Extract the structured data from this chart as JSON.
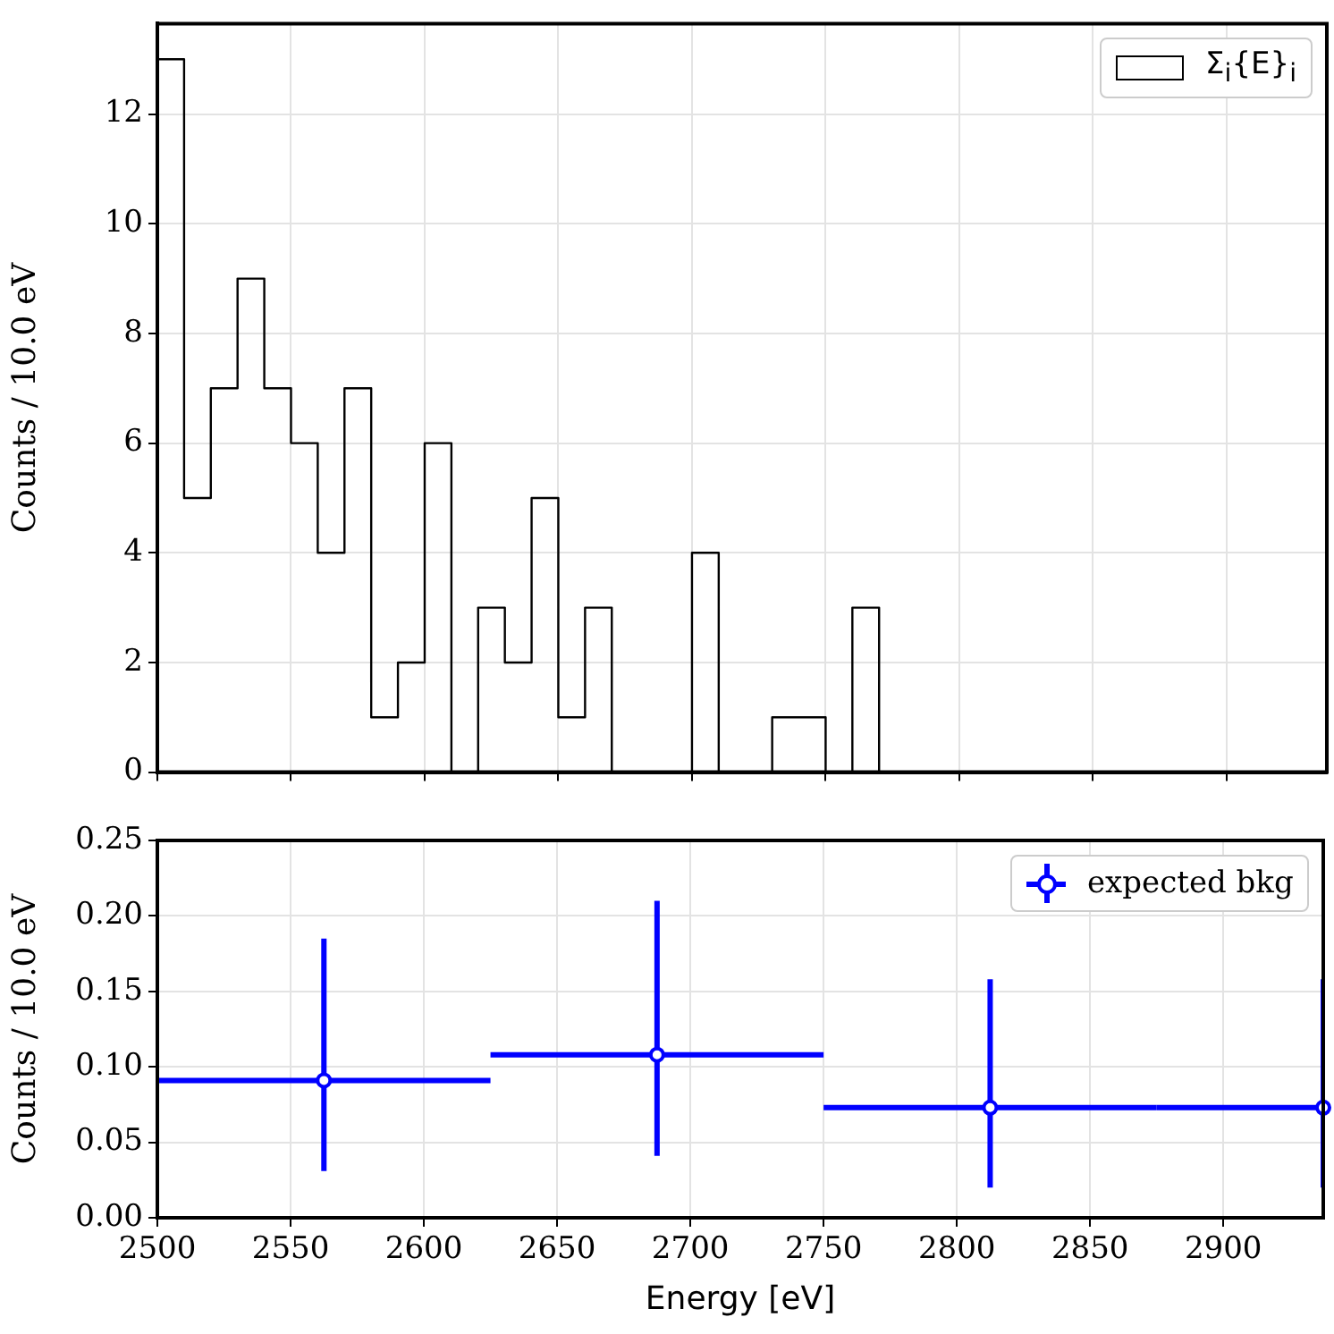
{
  "chart_data": [
    {
      "type": "histogram",
      "ylabel": "Counts / 10.0 eV",
      "bins": [
        2500,
        2510,
        2520,
        2530,
        2540,
        2550,
        2560,
        2570,
        2580,
        2590,
        2600,
        2610,
        2620,
        2630,
        2640,
        2650,
        2660,
        2670,
        2680,
        2690,
        2700,
        2710,
        2720,
        2730,
        2740,
        2750,
        2760,
        2770
      ],
      "series": [
        {
          "name": "Σ$_{i}${E}$_{i}$",
          "color": "#000000",
          "values": [
            13,
            5,
            7,
            9,
            7,
            6,
            4,
            7,
            1,
            2,
            6,
            0,
            3,
            2,
            5,
            1,
            3,
            0,
            0,
            0,
            4,
            0,
            0,
            1,
            1,
            0,
            3
          ]
        }
      ],
      "xlim": [
        2500,
        2937.5
      ],
      "xticks": [
        2500,
        2550,
        2600,
        2650,
        2700,
        2750,
        2800,
        2850,
        2900
      ],
      "ylim": [
        0,
        13.65
      ],
      "yticks": [
        0,
        2,
        4,
        6,
        8,
        10,
        12
      ],
      "tick_labels": "y",
      "grid": true,
      "legend": "top right"
    },
    {
      "type": "scatter",
      "xlabel": "Energy [eV]",
      "ylabel": "Counts / 10.0 eV",
      "x": [
        2562.5,
        2687.5,
        2812.5,
        2937.5
      ],
      "series": [
        {
          "name": "expected bkg",
          "color": "#0000ff",
          "values": [
            0.091,
            0.108,
            0.073,
            0.073
          ],
          "errors": [
            [
              0.031,
              0.185
            ],
            [
              0.041,
              0.21
            ],
            [
              0.02,
              0.158
            ],
            [
              0.02,
              0.158
            ]
          ],
          "xerrors": [
            62.5,
            62.5,
            62.5,
            [
              2875,
              2937.5
            ]
          ]
        }
      ],
      "marker": "circle",
      "xlim": [
        2500,
        2937.5
      ],
      "xticks": [
        2500,
        2550,
        2600,
        2650,
        2700,
        2750,
        2800,
        2850,
        2900
      ],
      "ylim": [
        0,
        0.25
      ],
      "yticks": [
        {
          "value": 0,
          "label": "0.00"
        },
        {
          "value": 0.05,
          "label": "0.05"
        },
        {
          "value": 0.1,
          "label": "0.10"
        },
        {
          "value": 0.15,
          "label": "0.15"
        },
        {
          "value": 0.2,
          "label": "0.20"
        },
        {
          "value": 0.25,
          "label": "0.25"
        }
      ],
      "grid": true,
      "legend": "top right"
    }
  ]
}
